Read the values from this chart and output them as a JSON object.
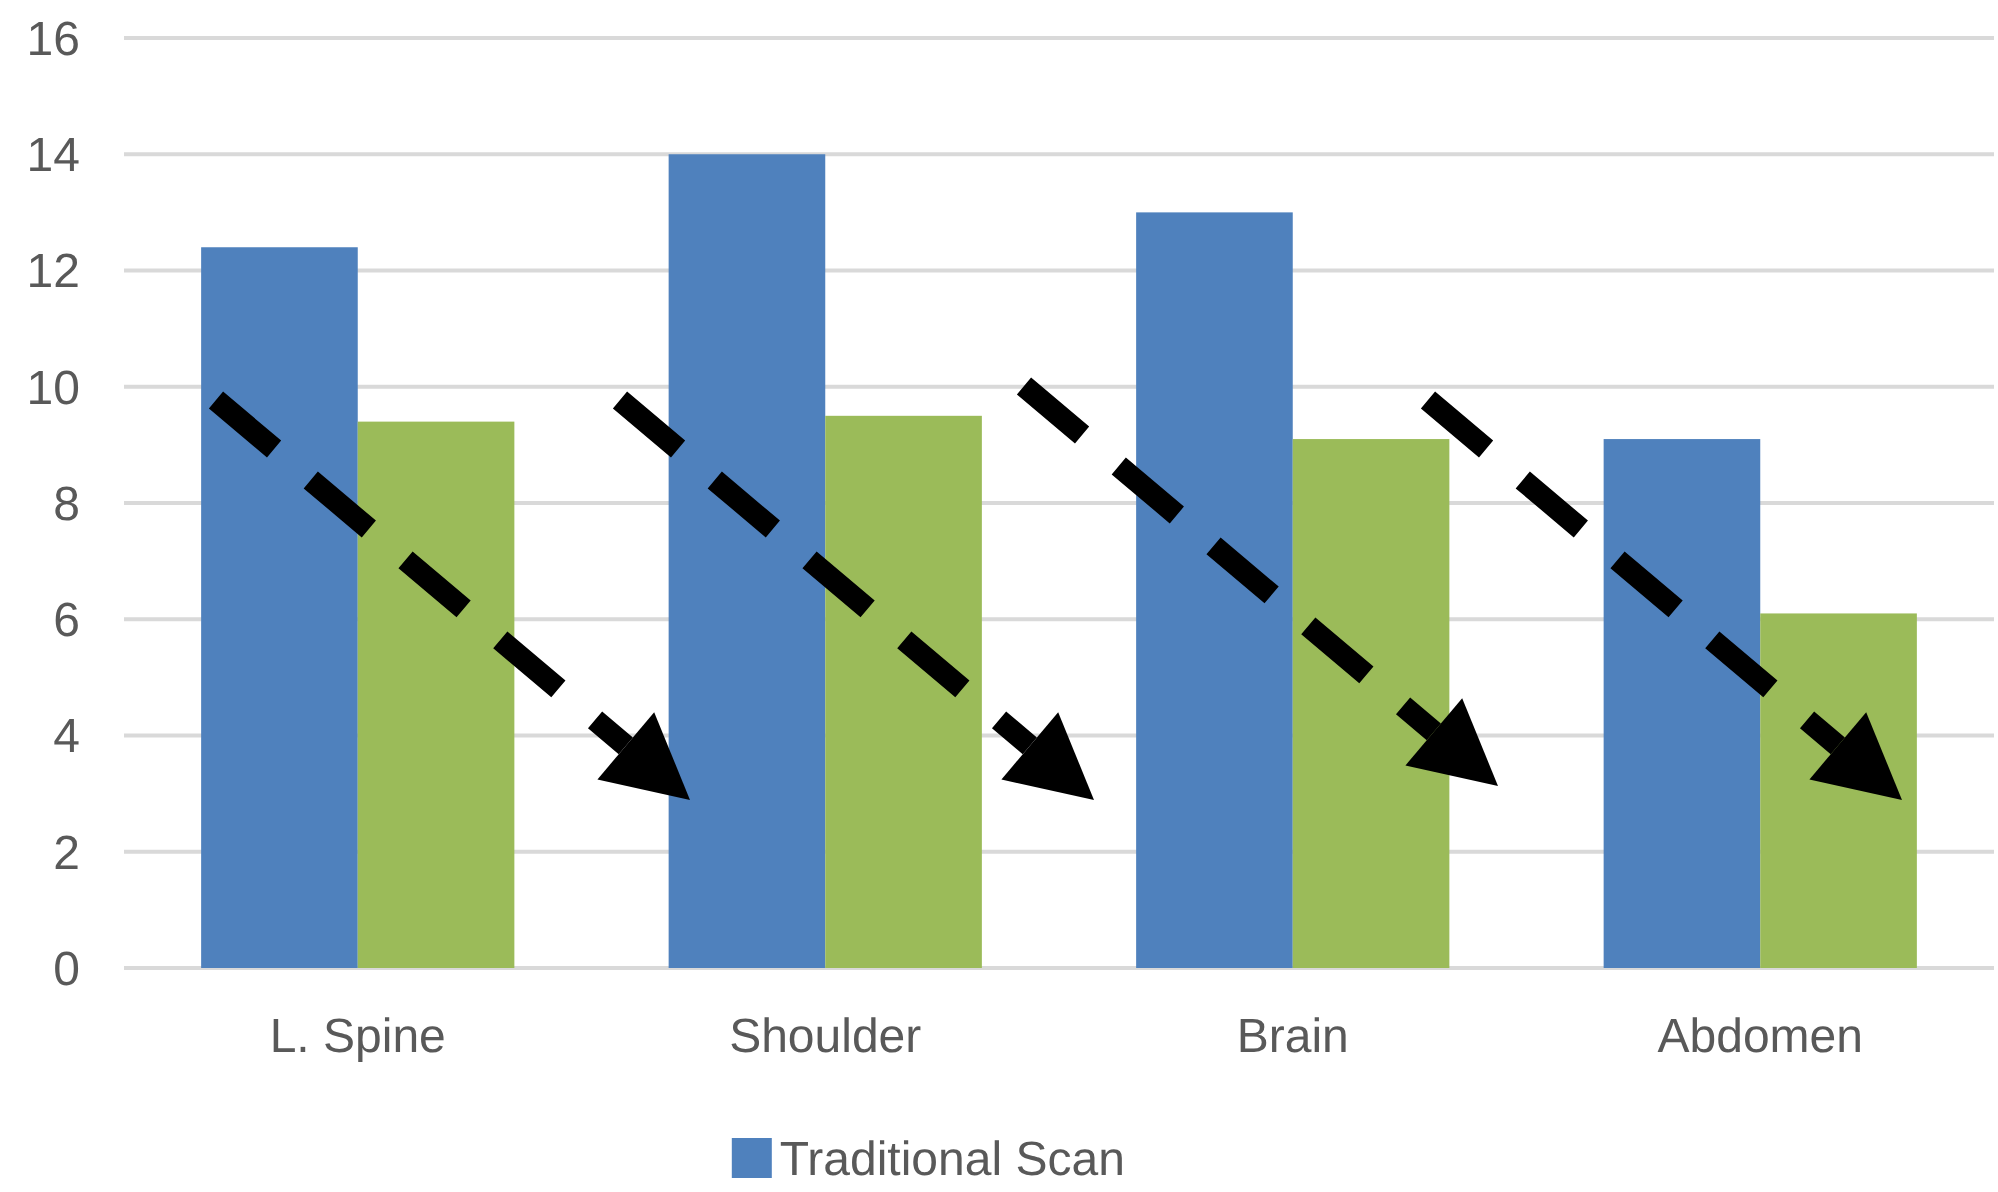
{
  "chart_data": {
    "type": "bar",
    "categories": [
      "L. Spine",
      "Shoulder",
      "Brain",
      "Abdomen"
    ],
    "series": [
      {
        "name": "Traditional Scan",
        "color": "#4f81bd",
        "values": [
          12.4,
          14.0,
          13.0,
          9.1
        ]
      },
      {
        "color": "#9bbb59",
        "values": [
          9.4,
          9.5,
          9.1,
          6.1
        ]
      }
    ],
    "ylim": [
      0,
      16
    ],
    "yticks": [
      0,
      2,
      4,
      6,
      8,
      10,
      12,
      14,
      16
    ],
    "grid": "y",
    "legend": "bottom"
  }
}
